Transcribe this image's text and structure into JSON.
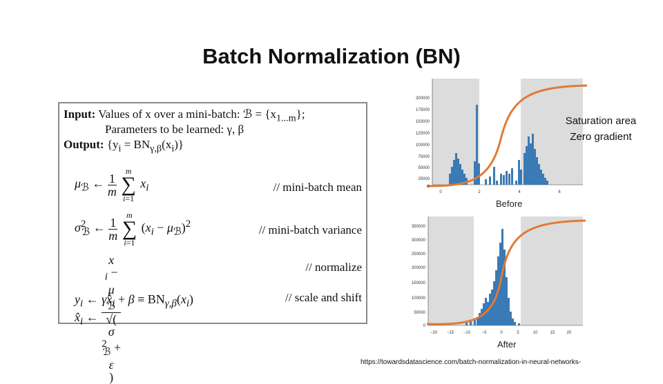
{
  "slide": {
    "title": "Batch Normalization (BN)",
    "note_line1": "Saturation area",
    "note_line2": "Zero gradient",
    "url": "https://towardsdatascience.com/batch-normalization-in-neural-networks-"
  },
  "algorithm": {
    "input_kw": "Input:",
    "input_text": "Values of x over a mini-batch: ℬ = {x",
    "input_sub": "1...m",
    "input_end": "};",
    "params_text": "Parameters to be learned: γ, β",
    "output_kw": "Output:",
    "output_text": "{y",
    "output_sub": "i",
    "output_mid": " = BN",
    "output_sub2": "γ,β",
    "output_end": "(x",
    "output_end2": ")}",
    "comment_mean": "// mini-batch mean",
    "comment_var": "// mini-batch variance",
    "comment_norm": "// normalize",
    "comment_scale": "// scale and shift"
  },
  "charts": {
    "before": {
      "xlabel": "Before",
      "yticks": [
        "200000",
        "175000",
        "150000",
        "125000",
        "100000",
        "75000",
        "50000",
        "25000",
        "0"
      ],
      "xticks": [
        "0",
        "2",
        "4",
        "6"
      ]
    },
    "after": {
      "xlabel": "After",
      "yticks": [
        "350000",
        "300000",
        "250000",
        "200000",
        "150000",
        "100000",
        "50000",
        "0"
      ],
      "xticks": [
        "−20",
        "−15",
        "−10",
        "−5",
        "0",
        "5",
        "10",
        "15",
        "20"
      ]
    },
    "colors": {
      "bars": "#3a7ab5",
      "sigmoid": "#e07a35",
      "saturation": "#dcdcdc"
    }
  }
}
